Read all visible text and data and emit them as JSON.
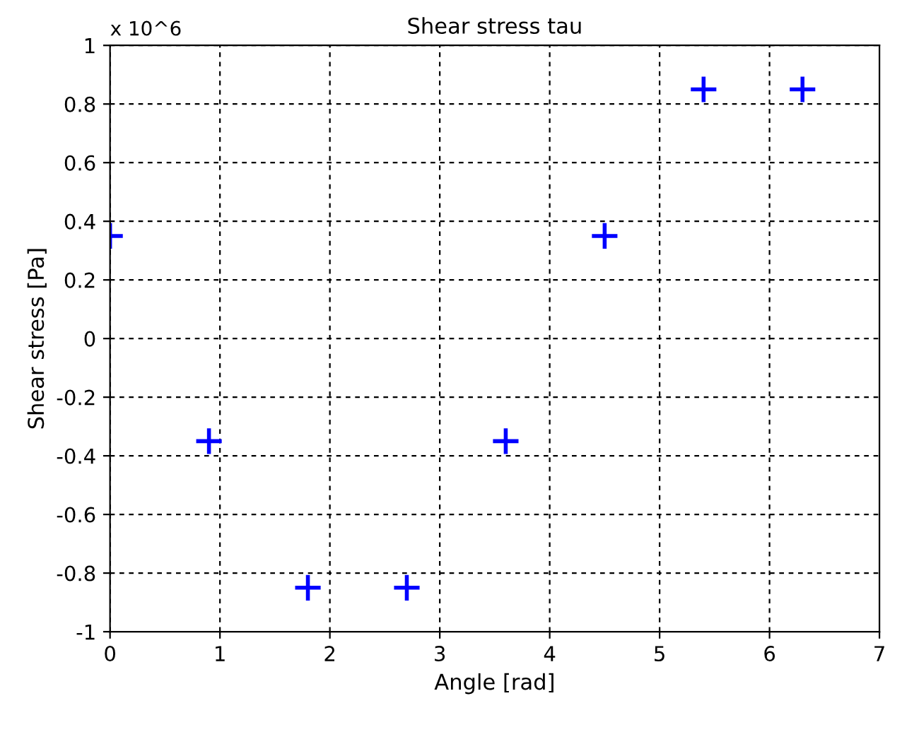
{
  "chart_data": {
    "type": "scatter",
    "title": "Shear stress tau",
    "xlabel": "Angle [rad]",
    "ylabel": "Shear stress [Pa]",
    "annotations": [
      "x 10^6"
    ],
    "x": [
      0,
      0.9,
      1.8,
      2.7,
      3.6,
      4.5,
      5.4,
      6.3
    ],
    "series": [
      {
        "color": "#0000ff",
        "values": [
          0.35,
          -0.35,
          -0.85,
          -0.85,
          -0.35,
          0.35,
          0.85,
          0.85
        ]
      }
    ],
    "xlim": [
      0,
      7
    ],
    "xticks": [
      0,
      1,
      2,
      3,
      4,
      5,
      6,
      7
    ],
    "ylim": [
      -1,
      1
    ],
    "yticks": [
      -1,
      -0.8,
      -0.6,
      -0.4,
      -0.2,
      0,
      0.2,
      0.4,
      0.6,
      0.8,
      1
    ],
    "grid": true,
    "marker": "cross",
    "legend": false
  }
}
